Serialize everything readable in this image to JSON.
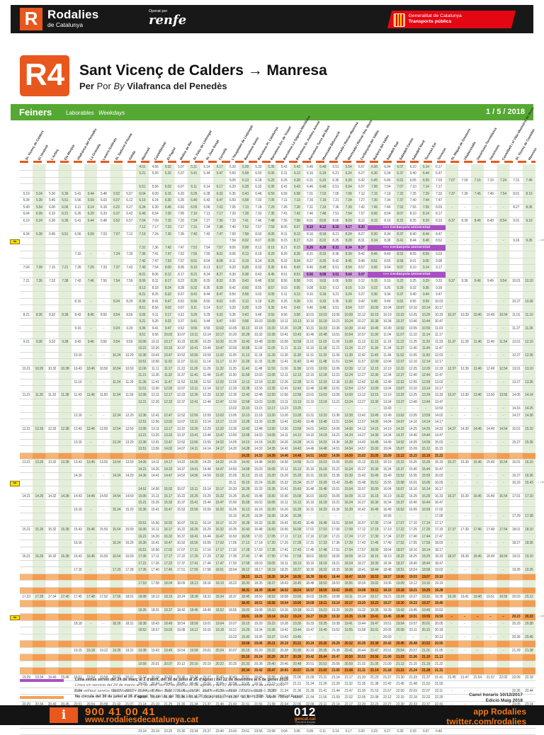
{
  "topbar": {
    "logo_letter": "R",
    "brand": "Rodalies",
    "brand_sub": "de Catalunya",
    "operated_label": "Operat per",
    "operator": "renfe",
    "gencat_1": "Generalitat de Catalunya",
    "gencat_2": "Transports públics"
  },
  "line": {
    "code": "R4",
    "title": "Sant Vicenç de Calders → Manresa",
    "via_per": "Per",
    "via_por": "Por",
    "via_by": "By",
    "via_name": "Vilafranca del Penedès"
  },
  "daybar": {
    "ca": "Feiners",
    "es": "Laborables",
    "en": "Weekdays",
    "date": "1 / 5 / 2018"
  },
  "stations": [
    "St. Vicenç de Calders",
    "El Vendrell",
    "L'Arboç",
    "Els Monjos",
    "Vilafranca del Penedès",
    "La Granada",
    "Lavern-Subirats",
    "St. Sadurní d'Anoia",
    "Gelida",
    "Martorell",
    "Castellbisbal",
    "El Papiol",
    "Molins de Rei",
    "St. Feliu de Llobregat",
    "St. Joan Despí",
    "Cornellà",
    "L'Hospitalet de Llobregat",
    "Barcelona Sants",
    "Barcelona Pl. Catalunya",
    "Barcelona Arc de Triomf",
    "Barcelona La Sagrera-Meridiana",
    "Barcelona St. Andreu Arenal",
    "Barcelona Torre del Baró",
    "Montcada Bifurcació",
    "Montcada i Reixac-Manresa",
    "Montcada i Reixac-Sta. Maria",
    "Cerdanyola del Vallès",
    "Barberà del Vallès",
    "Sabadell Sud",
    "Sabadell Centre",
    "Sabadell Nord",
    "Terrassa Est",
    "Terrassa",
    "St. Miquel de Gonteres",
    "Viladecavalls",
    "Vacarisses-Torreblanca",
    "Vacarisses",
    "Castellbell i el Vilar-Monistrol de Mont.",
    "St. Vicenç de Castellet",
    "Manresa"
  ],
  "purple_label": "»»» Cerdanyola Universitat",
  "nu_label": "nu",
  "note_label": "→ Lleida",
  "rows": [
    {
      "s": 9,
      "c": "4.51 4.56 5.02 5.07 5.11 5.14 5.17 5.20 5.28 5.33 5.35 5.41 5.43 5.46 5.48 5.51 5.54 5.57 6.00 6.04 6.07 6.10 6.14 6.17"
    },
    {
      "s": 9,
      "c": "5.21 5.26 5.32 5.37 5.41 5.44 5.47 5.50 5.58 6.03 6.05 6.11 6.13 6.16 6.18 6.21 6.24 6.27 6.30 6.34 6.37 6.40 6.44 6.47"
    },
    {
      "s": 16,
      "c": "6.05 6.13 6.18 6.20 6.26 6.28 6.31 6.33 6.36 6.39 6.42 6.45 6.49 6.52 6.55 6.59 7.03 7.07 7.09 7.16 7.19 7.24 7.31 7.40"
    },
    {
      "s": 9,
      "c": "5.51 5.56 6.02 6.07 6.11 6.14 6.17 6.20 6.28 6.33 6.35 6.41 6.43 6.46 6.48 6.51 6.54 6.57 7.00 7.04 7.07 7.10 7.14 7.17"
    },
    {
      "s": 0,
      "c": "5.19 5.24 5.30 5.36 5.41 5.44 5.48 5.52 5.57 6.04 6.09 6.15 6.20 6.25 6.28 6.32 6.35 6.43 6.48 6.50 6.56 6.58 7.01 7.03 7.06 7.09 7.12 7.15 7.19 7.22 7.25 7.29 7.33 7.37 7.39 7.46 7.49 7.54 8.01 8.10"
    },
    {
      "s": 0,
      "c": "5.34 5.39 5.45 5.51 5.56 5.59 6.03 6.07 6.12 6.19 6.24 6.30 6.35 6.40 6.43 6.47 6.50 6.58 7.03 7.05 7.11 7.13 7.16 7.18 7.21 7.24 7.27 7.30 7.34 7.37 7.40 7.44 7.47"
    },
    {
      "s": 0,
      "c": "5.49 5.54 6.00 6.06 6.11 6.14 6.18 6.22 6.27 6.34 6.39 6.45 6.50 6.55 6.58 7.02 7.05 7.13 7.18 7.20 7.26 7.28 7.31 7.33 7.36 7.39 7.42 7.45 7.49 7.52 7.55 7.59 8.03 - - - - - 8.27 8.36"
    },
    {
      "s": 0,
      "c": "6.04 6.09 6.15 6.21 6.26 6.29 6.33 6.37 6.42 6.49 6.54 7.00 7.05 7.10 7.13 7.17 7.20 7.28 7.33 7.35 7.41 7.43 7.46 7.48 7.51 7.54 7.57 8.00 8.04 8.07 8.10 8.14 8.17"
    },
    {
      "s": 0,
      "c": "6.19 6.24 6.30 6.36 6.41 6.44 6.48 6.52 6.57 7.04 7.09 7.15 7.20 7.24 7.27 7.30 7.33 7.41 7.46 7.48 7.55 7.58 8.01 8.03 8.06 8.09 8.12 8.15 8.19 8.22 8.25 8.29 8.33 8.37 8.39 8.46 8.49 8.54 9.01 9.10"
    },
    {
      "s": 9,
      "c": "7.12 7.17 7.23 7.27 7.31 7.34 7.38 7.40 7.52 7.57 7.59 8.05 8.07 8.10 8.12 8.15 8.17 8.20",
      "f": "P"
    },
    {
      "s": 0,
      "c": "6.34 6.39 6.45 6.51 6.56 6.59 7.03 7.07 7.12 7.19 7.24 7.30 7.35 7.40 7.43 7.47 7.50 7.58 8.03 8.05 8.11 8.13 8.16 8.18 8.21 8.24 8.27 8.30 8.34 8.37 8.40 8.44 8.47 -"
    },
    {
      "s": 16,
      "c": "7.54 8.02 8.07 8.09 8.15 8.17 8.20 8.22 8.25 8.28 8.31 8.34 8.38 8.41 8.44 8.48 8.52 - - - - - 9.16 9.26",
      "f": "NL"
    },
    {
      "s": 9,
      "c": "7.31 7.36 7.42 7.47 7.51 7.54 7.57 8.00 8.08 8.13 8.15 8.21 8.23 8.26 8.28 8.31 8.34 8.37",
      "f": "P"
    },
    {
      "s": 4,
      "c": "7.16 - - 7.24 7.29 7.36 7.41 7.47 7.52 7.56 7.59 8.02 8.05 8.13 8.18 8.20 8.26 8.28 8.31 8.33 8.36 8.39 8.42 8.45 8.49 8.52 8.55 8.59 9.03"
    },
    {
      "s": 9,
      "c": "7.42 7.47 7.53 7.57 8.01 8.04 8.08 8.11 8.19 8.24 8.26 8.32 8.34 8.37 8.39 8.42 8.45 8.48 8.51 8.55 8.58 9.01 9.05 9.08"
    },
    {
      "s": 0,
      "c": "7.04 7.09 7.15 7.21 7.26 7.29 7.33 7.37 7.42 7.49 7.54 8.00 8.05 8.10 8.13 8.17 8.20 8.28 8.33 8.35 8.41 8.43 8.46 8.48 8.51 8.54 8.57 9.00 9.04 9.07 9.10 9.14 9.17"
    },
    {
      "s": 9,
      "c": "8.01 8.06 8.12 8.17 8.21 8.24 8.27 8.30 8.38 8.43 8.45 8.51 8.53 8.56 8.58 9.01 9.04 9.07",
      "f": "P"
    },
    {
      "s": 0,
      "c": "7.21 7.26 7.32 7.38 7.43 7.46 7.50 7.54 7.59 8.06 8.11 8.17 8.22 8.26 8.29 8.32 8.35 8.43 8.48 8.50 8.56 8.58 9.01 9.03 9.06 9.09 9.12 9.15 9.19 9.22 9.25 9.29 9.33 9.37 9.39 9.46 9.49 9.54 10.01 10.10"
    },
    {
      "s": 9,
      "c": "8.13 8.18 8.24 8.28 8.32 8.35 8.39 8.42 8.50 8.55 8.57 9.03 9.05 9.08 9.10 9.13 9.16 9.19 9.22 9.26 9.29 9.32 9.36 9.39"
    },
    {
      "s": 9,
      "c": "8.21 8.26 8.32 8.37 8.41 8.44 8.47 8.50 8.58 9.03 9.05 9.11 9.13 9.16 9.18 9.21 9.24 9.27 9.30 9.34 9.37 9.40 9.44 9.47"
    },
    {
      "s": 4,
      "c": "8.16 - - 8.24 8.29 8.36 8.41 8.47 8.52 8.56 8.59 9.02 9.05 9.13 9.18 9.20 9.26 9.28 9.31 9.33 9.36 9.39 9.42 9.45 9.49 9.52 9.55 9.59 10.03 - - - - - 10.27 10.36"
    },
    {
      "s": 9,
      "c": "8.51 8.56 9.02 9.07 9.11 9.14 9.17 9.20 9.28 9.33 9.35 9.41 9.43 9.46 9.48 9.51 9.54 9.57 10.00 10.04 10.07 10.10 10.14 10.17"
    },
    {
      "s": 0,
      "c": "8.21 8.26 8.32 8.38 8.43 8.46 8.50 8.54 8.59 9.06 9.11 9.17 9.22 9.26 9.29 9.32 9.35 9.43 9.48 9.50 9.56 9.58 10.01 10.03 10.06 10.09 10.12 10.15 10.19 10.22 10.25 10.29 10.33 10.37 10.39 10.46 10.49 10.54 11.01 11.10"
    },
    {
      "s": 9,
      "c": "9.21 9.26 9.32 9.37 9.41 9.44 9.47 9.50 9.58 10.03 10.05 10.11 10.13 10.16 10.18 10.21 10.24 10.27 10.30 10.34 10.37 10.40 10.44 10.47"
    },
    {
      "s": 4,
      "c": "9.16 - - 9.24 9.29 9.36 9.41 9.47 9.52 9.56 9.59 10.02 10.05 10.13 10.18 10.20 10.26 10.28 10.31 10.33 10.36 10.39 10.42 10.45 10.49 10.52 10.55 10.59 11.03 - - - - - 11.27 11.36"
    },
    {
      "s": 9,
      "c": "9.51 9.56 10.02 10.07 10.11 10.14 10.17 10.20 10.28 10.33 10.35 10.41 10.43 10.46 10.48 10.51 10.54 10.57 11.00 11.04 11.07 11.10 11.14 11.17"
    },
    {
      "s": 0,
      "c": "9.21 9.26 9.32 9.38 9.43 9.46 9.50 9.54 9.59 10.06 10.11 10.17 10.22 10.26 10.29 10.32 10.35 10.43 10.48 10.50 10.56 10.58 11.01 11.03 11.06 11.09 11.12 11.15 11.19 11.22 11.25 11.29 11.33 11.37 11.39 11.46 11.49 11.54 12.01 12.10"
    },
    {
      "s": 9,
      "c": "10.21 10.26 10.32 10.37 10.41 10.44 10.47 10.50 10.58 11.03 11.05 11.11 11.13 11.16 11.18 11.21 11.24 11.27 11.30 11.34 11.37 11.40 11.44 11.47"
    },
    {
      "s": 4,
      "c": "10.16 - - 10.24 10.29 10.36 10.41 10.47 10.52 10.56 10.59 11.02 11.05 11.13 11.18 11.20 11.26 11.28 11.31 11.33 11.36 11.39 11.42 11.45 11.49 11.52 11.55 11.59 12.03 - - - - - 12.27 12.36"
    },
    {
      "s": 9,
      "c": "10.51 10.56 11.02 11.07 11.11 11.14 11.17 11.20 11.28 11.33 11.35 11.41 11.43 11.46 11.48 11.51 11.54 11.57 12.00 12.04 12.07 12.10 12.14 12.17"
    },
    {
      "s": 0,
      "c": "10.21 10.26 10.32 10.38 10.43 10.46 10.50 10.54 10.59 11.06 11.11 11.17 11.22 11.26 11.29 11.32 11.35 11.43 11.48 11.50 11.56 11.58 12.01 12.03 12.06 12.09 12.12 12.15 12.19 12.22 12.25 12.29 12.33 12.37 12.39 12.46 12.49 12.54 13.01 13.10"
    },
    {
      "s": 9,
      "c": "11.21 11.26 11.32 11.37 11.41 11.44 11.47 11.50 11.58 12.03 12.05 12.11 12.13 12.16 12.18 12.21 12.24 12.27 12.30 12.34 12.37 12.40 12.44 12.47"
    },
    {
      "s": 4,
      "c": "11.16 - - 11.24 11.29 11.36 11.41 11.47 11.52 11.56 11.59 12.02 12.05 12.13 12.18 12.20 12.26 12.28 12.31 12.33 12.36 12.39 12.42 12.45 12.49 12.52 12.55 12.59 13.03 - - - - - 13.27 13.36"
    },
    {
      "s": 9,
      "c": "11.51 11.56 12.02 12.07 12.11 12.14 12.17 12.20 12.28 12.33 12.35 12.41 12.43 12.46 12.48 12.51 12.54 12.57 13.00 13.04 13.07 13.10 13.14 13.17"
    },
    {
      "s": 0,
      "c": "11.21 11.26 11.32 11.38 11.43 11.46 11.50 11.54 11.59 12.06 12.11 12.17 12.22 12.26 12.29 12.32 12.35 12.43 12.48 12.50 12.56 12.58 13.01 13.03 13.06 13.09 13.12 13.15 13.19 13.22 13.25 13.29 13.33 13.37 13.39 13.46 13.50 13.56 14.05 14.14"
    },
    {
      "s": 9,
      "c": "12.21 12.26 12.32 12.37 12.41 12.44 12.47 12.50 12.58 13.03 13.05 13.11 13.13 13.16 13.18 13.21 13.24 13.27 13.30 13.34 13.37 13.40 13.44 13.47"
    },
    {
      "s": 16,
      "c": "13.02 13.10 13.15 13.17 13.23 13.25 - - - - - - 13.43 - - - 13.53 - - - - - 14.16 14.25"
    },
    {
      "s": 4,
      "c": "12.16 - - 12.24 12.29 12.36 12.41 12.47 12.52 12.56 12.59 13.02 13.05 13.13 13.18 13.20 13.26 13.28 13.31 13.33 13.36 13.39 13.42 13.45 13.49 13.52 13.55 13.59 14.02 - - - - - 14.27 14.36"
    },
    {
      "s": 9,
      "c": "12.51 12.56 13.02 13.07 13.11 13.14 13.17 13.20 13.28 13.33 13.35 13.41 13.43 13.46 13.48 13.51 13.54 13.57 14.00 14.04 14.07 14.10 14.14 14.17"
    },
    {
      "s": 0,
      "c": "12.21 12.26 12.32 12.38 12.43 12.46 12.50 12.54 12.59 13.06 13.11 13.17 13.22 13.26 13.29 13.32 13.35 13.43 13.48 13.50 13.56 13.58 14.01 14.03 14.06 14.09 14.12 14.15 14.19 14.22 14.25 14.29 14.33 14.37 14.39 14.46 14.49 14.54 15.01 15.10"
    },
    {
      "s": 9,
      "c": "13.21 13.26 13.32 13.37 13.41 13.44 13.47 13.50 13.58 14.03 14.05 14.11 14.13 14.16 14.18 14.21 14.24 14.27 14.30 14.34 14.37 14.40 14.44 14.47"
    },
    {
      "s": 4,
      "c": "13.16 - - 13.24 13.29 13.36 13.41 13.47 13.52 13.56 13.59 14.02 14.05 14.13 14.18 14.20 14.26 14.28 14.31 14.33 14.36 14.39 14.42 14.45 14.49 14.52 14.55 14.59 15.03 - - - - - 15.27 15.36"
    },
    {
      "s": 9,
      "c": "13.51 13.56 14.02 14.07 14.11 14.14 14.17 14.20 14.28 14.33 14.35 14.41 14.43 14.46 14.48 14.51 14.54 14.57 15.00 15.04 15.07 15.09 15.12 15.15"
    },
    {
      "s": 17,
      "c": "14.25 14.33 14.38 14.46 14.48 14.51 14.53 14.56 14.59 15.02 15.05 15.09 15.12 15.15 15.19 15.22",
      "f": "O"
    },
    {
      "s": 0,
      "c": "13.21 13.26 13.32 13.38 13.43 13.46 13.50 13.54 13.59 14.06 14.11 14.17 14.22 14.26 14.29 14.32 14.35 14.43 14.48 14.50 14.56 14.58 15.01 15.03 15.06 15.09 15.12 15.15 15.19 15.22 15.25 15.29 15.33 15.37 15.39 15.46 15.49 15.54 16.01 16.10"
    },
    {
      "s": 9,
      "c": "14.21 14.26 14.32 14.37 14.41 14.44 14.47 14.50 14.58 15.03 15.05 15.11 15.13 15.16 15.18 15.21 15.24 15.27 15.30 15.34 15.37 15.40 15.44 15.47"
    },
    {
      "s": 4,
      "c": "14.16 - - 14.24 14.29 14.36 14.41 14.47 14.52 14.56 14.59 15.02 15.05 15.13 15.18 15.20 15.26 15.28 15.31 15.33 15.36 15.39 15.42 15.45 15.49 15.52 15.55 15.59 16.03 - - - - - 16.27 16.36"
    },
    {
      "s": 16,
      "c": "15.11 15.19 15.24 15.26 15.32 15.34 15.37 15.39 15.42 15.45 15.48 15.51 15.55 15.58 16.01 16.05 16.09 - - - - - 16.33 16.43",
      "f": "NL"
    },
    {
      "s": 9,
      "c": "14.51 14.56 15.02 15.07 15.11 15.14 15.17 15.20 15.28 15.33 15.35 15.41 15.43 15.46 15.48 15.51 15.54 15.57 16.00 16.04 16.07 16.10 16.14 16.17"
    },
    {
      "s": 0,
      "c": "14.21 14.26 14.32 14.38 14.43 14.46 14.50 14.54 14.59 15.06 15.11 15.17 15.22 15.26 15.29 15.32 15.35 15.43 15.48 15.50 15.56 15.58 16.01 16.03 16.06 16.09 16.12 16.15 16.19 16.22 16.25 16.29 16.33 16.37 16.39 16.46 16.49 16.54 17.01 17.10"
    },
    {
      "s": 9,
      "c": "15.21 15.26 15.32 15.37 15.41 15.44 15.47 15.50 15.58 16.03 16.05 16.11 16.13 16.16 16.18 16.21 16.24 16.27 16.30 16.34 16.37 16.40 16.44 16.47"
    },
    {
      "s": 4,
      "c": "15.16 - - 15.24 15.29 15.36 15.41 15.47 15.52 15.56 15.59 16.02 16.05 16.13 16.18 16.20 16.26 16.28 16.31 16.33 16.36 16.39 16.42 16.45 16.49 16.52 16.55 16.59 17.02"
    },
    {
      "s": 16,
      "c": "16.15 16.23 16.28 16.30 16.36 16.38 - - - - - - 16.56 - - - 17.06 - - - - - 17.29 17.38"
    },
    {
      "s": 9,
      "c": "15.51 15.56 16.02 16.07 16.11 16.14 16.17 16.20 16.28 16.33 16.35 16.41 16.43 16.46 16.48 16.51 16.54 16.57 17.00 17.04 17.07 17.10 17.14 17.17"
    },
    {
      "s": 0,
      "c": "15.21 15.26 15.32 15.38 15.43 15.46 15.50 15.54 15.59 16.06 16.11 16.17 16.22 16.26 16.29 16.32 16.35 16.43 16.48 16.50 16.56 16.58 17.01 17.03 17.06 17.09 17.12 17.15 17.19 17.22 17.25 17.29 17.33 17.37 17.39 17.46 17.49 17.54 18.01 18.10"
    },
    {
      "s": 9,
      "c": "16.21 16.26 16.32 16.37 16.41 16.44 16.47 16.50 16.58 17.03 17.05 17.11 17.13 17.16 17.18 17.21 17.24 17.27 17.30 17.34 17.37 17.40 17.44 17.47"
    },
    {
      "s": 4,
      "c": "16.16 - - 16.24 16.29 16.36 16.41 16.47 16.52 16.56 16.59 17.02 17.05 17.13 17.18 17.20 17.26 17.28 17.31 17.33 17.36 17.39 17.42 17.45 17.49 17.52 17.55 17.59 18.03 - - - - - 18.27 18.36"
    },
    {
      "s": 9,
      "c": "16.51 16.56 17.02 17.07 17.11 17.14 17.17 17.20 17.28 17.33 17.35 17.41 17.43 17.46 17.48 17.51 17.54 17.57 18.00 18.04 18.07 18.10 18.14 18.17"
    },
    {
      "s": 0,
      "c": "16.21 16.26 16.32 16.38 16.43 16.46 16.50 16.54 16.59 17.06 17.11 17.17 17.22 17.26 17.29 17.32 17.35 17.43 17.48 17.50 17.56 17.58 18.01 18.03 18.06 18.09 18.12 18.15 18.19 18.22 18.25 18.29 18.33 18.37 18.39 18.46 18.49 18.54 19.01 19.10"
    },
    {
      "s": 9,
      "c": "17.21 17.26 17.32 17.37 17.41 17.44 17.47 17.50 17.58 18.03 18.05 18.11 18.13 18.16 18.18 18.21 18.24 18.27 18.30 18.34 18.37 18.40 18.44 18.47"
    },
    {
      "s": 4,
      "c": "17.15 - - 17.23 17.28 17.35 17.40 17.46 17.51 17.55 17.58 18.01 18.04 18.12 18.17 18.19 18.25 18.27 18.30 18.32 18.35 18.38 18.41 18.44 18.48 18.51 18.54 18.58 19.02 - - - - - 19.26 19.35"
    },
    {
      "s": 17,
      "c": "18.13 18.21 18.26 18.34 18.36 18.39 18.41 18.44 18.47 18.50 18.53 18.57 19.00 19.03 19.07 19.10",
      "f": "O"
    },
    {
      "s": 9,
      "c": "17.53 17.58 18.04 18.09 18.13 18.16 18.19 18.22 18.30 18.35 18.37 18.43 18.45 18.48 18.50 18.53 18.56 18.59 19.02 19.06 19.09 19.12 19.16 19.19"
    },
    {
      "s": 17,
      "c": "18.31 18.39 18.44 18.52 18.54 18.57 18.59 19.02 19.05 19.08 19.11 19.15 19.18 19.21 19.25 19.28",
      "f": "O"
    },
    {
      "s": 0,
      "c": "17.23 17.28 17.34 17.40 17.45 17.48 17.52 17.56 18.01 18.08 18.13 18.19 18.24 18.28 18.31 18.34 18.37 18.45 18.50 18.52 18.58 19.00 19.03 19.05 19.08 19.11 19.14 19.17 19.21 19.24 19.27 19.31 19.35 19.39 19.41 19.48 19.51 19.56 20.03 20.12"
    },
    {
      "s": 17,
      "c": "18.43 18.51 18.56 19.04 19.06 19.09 19.11 19.14 19.17 19.20 19.23 19.27 19.30 19.33 19.37 19.40",
      "f": "O"
    },
    {
      "s": 9,
      "c": "18.26 18.31 18.37 18.42 18.46 18.49 18.52 18.55 19.03 19.08 19.10 19.16 19.18 19.21 19.23 19.26 19.29 19.32 19.35 19.39 19.42 19.45 19.49 19.52"
    },
    {
      "s": 17,
      "c": "19.01 19.09 19.14 19.22 19.24 19.27 19.29 19.32 19.35 19.38 19.41 19.45 19.48 19.51 19.55 19.59 - - - - - 20.23 20.33",
      "f": "ONL"
    },
    {
      "s": 4,
      "c": "18.18 - - 18.26 18.31 18.38 18.43 18.49 18.54 18.58 19.01 19.04 19.07 19.15 19.20 19.22 19.28 19.30 19.33 19.35 19.38 19.41 19.44 19.47 19.51 19.54 19.57 20.01 20.05 - - - - - 20.29 20.38"
    },
    {
      "s": 9,
      "c": "18.52 18.57 19.03 19.08 19.12 19.15 19.18 19.21 19.29 19.34 19.36 19.42 19.44 19.47 19.49 19.52 19.55 19.58 20.01 20.05 20.08 20.11 20.15 20.18"
    },
    {
      "s": 16,
      "c": "19.22 19.30 19.35 19.37 19.43 19.46 - - - - - - 20.03 - - - 20.13 - - - - - 20.36 20.45"
    },
    {
      "s": 17,
      "c": "19.58 20.06 20.11 20.19 20.21 20.24 20.26 20.29 20.32 20.35 20.38 20.42 20.45 20.48 20.52 20.55",
      "f": "O"
    },
    {
      "s": 4,
      "c": "19.15 19.18 19.22 19.26 19.31 19.38 19.43 19.49 19.54 19.58 20.01 20.04 20.07 20.15 20.20 20.22 20.28 20.30 20.33 20.35 20.38 20.41 20.44 20.47 20.51 20.54 20.57 21.01 21.05 - - - - - 21.29 21.38"
    },
    {
      "s": 17,
      "c": "20.16 20.24 20.29 20.37 20.39 20.42 20.44 20.47 20.50 20.53 20.56 21.00 21.03 21.06 21.10 21.13",
      "f": "O"
    },
    {
      "s": 9,
      "c": "19.56 20.01 20.07 20.12 20.16 20.19 20.22 20.25 20.33 20.38 20.40 20.46 20.48 20.51 20.53 20.56 20.59 21.02 21.05 21.09 21.12 21.15 21.19 21.22"
    },
    {
      "s": 17,
      "c": "20.34 20.42 20.47 20.55 20.57 21.00 21.02 21.05 21.08 21.11 21.14 21.18 21.21 21.24 21.28 21.31",
      "f": "O"
    },
    {
      "s": 0,
      "c": "19.29 19.34 19.40 19.46 19.51 19.54 19.58 20.02 20.07 20.14 20.19 20.25 20.30 20.34 20.37 20.40 20.43 20.51 20.56 20.58 21.04 21.06 21.09 21.11 21.14 21.17 21.20 21.23 21.27 21.30 21.33 21.37 21.41 21.45 21.47 21.54 21.57 22.02 22.09 22.18"
    },
    {
      "s": 9,
      "c": "20.29 20.34 20.40 20.45 20.49 20.52 20.55 20.58 21.06 21.11 21.13 21.19 21.21 21.24 21.26 21.29 21.32 21.35 21.38 21.42 21.45 21.48 21.52 21.55"
    },
    {
      "s": 4,
      "c": "20.24 - - 20.32 20.37 20.44 20.49 20.55 21.00 21.04 21.07 21.10 21.13 21.21 21.26 21.28 21.34 21.36 21.39 21.41 21.44 21.47 21.50 21.53 21.57 22.00 22.03 22.07 22.11 - - - - - 22.35 22.44"
    },
    {
      "s": 9,
      "c": "20.59 21.04 21.10 21.15 21.19 21.22 21.25 21.28 21.36 21.41 21.43 21.49 21.51 21.54 21.56 21.59 22.02 22.05 22.08 22.12 22.15 22.18 22.22 22.25"
    },
    {
      "s": 0,
      "c": "20.29 20.34 20.40 20.45 20.51 20.54 20.58 21.02 21.07 21.14 21.19 21.25 21.30 21.34 21.37 21.40 21.43 21.51 21.56 21.58 22.04 22.06 22.09 22.11 22.14 22.17 22.20 22.23 22.27 22.30 22.33 22.37 22.41 - - - - - 23.05 23.14"
    },
    {
      "s": 4,
      "c": "21.24 - - 21.32 21.37 21.44 21.49 21.55 22.00 22.04 22.07 22.10 22.13 22.21 22.26 22.28 22.34 22.36 22.39 22.41 22.44 22.47 22.50 22.53 22.57 23.00 23.03 23.07 23.11 23.15 23.17 23.24 23.27 23.32 23.39 23.48"
    },
    {
      "s": 0,
      "c": "21.27 21.32 21.38 21.44 21.49 21.52 21.56 22.00 22.05 22.12 22.17 22.23 22.28 22.32 22.35 22.38 22.41 22.49 22.54 22.56 23.02 23.04 23.07 23.09 23.12 23.15 23.18 23.21 23.25 23.28 23.31 23.35 23.39"
    },
    {
      "s": 4,
      "c": "22.24 - - 22.32 22.37 22.44 22.49 22.55 23.00 23.04 23.07 23.10 23.13 23.21 23.26 23.28 23.34 23.36 23.39 23.41 23.44 23.47 23.50 23.53 23.57 0.00 0.03 0.07 0.10"
    },
    {
      "s": 9,
      "c": "23.14 23.19 23.25 23.30 23.34 23.37 23.40 23.43 23.51 23.56 23.58 0.04 0.06 0.09 0.11 0.14 0.17 0.20 0.23 0.27 0.30 0.33 0.37 0.40"
    }
  ],
  "legend": {
    "l1": "Línia sense servei del 24 de març al 2 d'abril, del 30 de juliol al 26 d'agost i del 22 de desembre al 6 de gener 2019",
    "l2": "Línea sin servicio del 24 de marzo al 2 de abril, del 30 de julio al 26 de agosto y del 22 de diciembre al 6 de enero 2019",
    "l3": "Line without service from March 24 to 2 April, from July 30 to August 26, and from December 22 to January 6, 2019",
    "l4_bold": "No circula del 30 de juliol al 26 d'agost.",
    "l4_rest": " No circula del 30 de julio al 26 de agosto. Does not run from 30th July to 26th of August."
  },
  "edition": {
    "line1": "Canvi horaris 10/12/2017",
    "line2": "Edició Maig 2018"
  },
  "botbar": {
    "info": "i",
    "phone": "900 41 00 41",
    "url": "www.rodaliesdecatalunya.cat",
    "code": "012",
    "gencat": "gencat.cat",
    "sub1": "Cost de la trucada",
    "sub2": "segons operador",
    "app": "app Rodalies",
    "twitter": "twitter.com/rodalies"
  },
  "colors": {
    "accent_orange": "#e8571d",
    "green_bar": "#55a832",
    "purple": "#a94fc4",
    "orange_row": "#f5a054",
    "stripe": "#e4efd8",
    "red_badge": "#e30613"
  }
}
